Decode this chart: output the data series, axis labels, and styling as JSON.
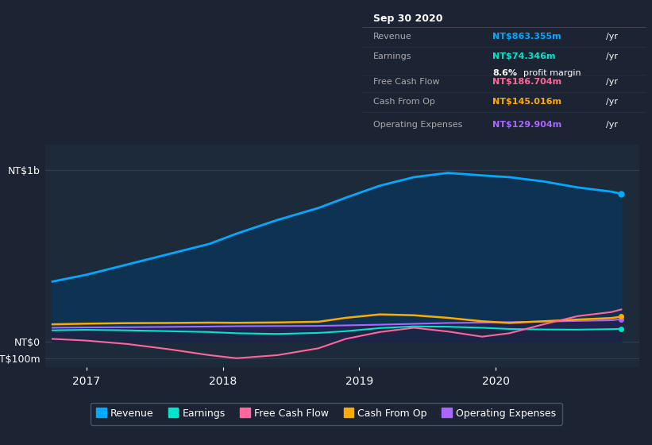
{
  "bg_color": "#1c2333",
  "plot_bg_color": "#1c2a3a",
  "ylim": [
    -150,
    1150
  ],
  "xlim": [
    2016.7,
    2021.05
  ],
  "y_ticks": [
    1000,
    0,
    -100
  ],
  "y_labels": [
    "NT$1b",
    "NT$0",
    "-NT$100m"
  ],
  "x_ticks": [
    2017,
    2018,
    2019,
    2020
  ],
  "legend_items": [
    {
      "label": "Revenue",
      "color": "#00aaff"
    },
    {
      "label": "Earnings",
      "color": "#00e5cc"
    },
    {
      "label": "Free Cash Flow",
      "color": "#ff6699"
    },
    {
      "label": "Cash From Op",
      "color": "#ffaa00"
    },
    {
      "label": "Operating Expenses",
      "color": "#aa66ff"
    }
  ],
  "revenue_x": [
    2016.75,
    2017.0,
    2017.3,
    2017.6,
    2017.9,
    2018.1,
    2018.4,
    2018.7,
    2018.9,
    2019.15,
    2019.4,
    2019.65,
    2019.9,
    2020.1,
    2020.35,
    2020.6,
    2020.85,
    2020.92
  ],
  "revenue_y": [
    350,
    390,
    450,
    510,
    570,
    630,
    710,
    780,
    840,
    910,
    960,
    985,
    970,
    960,
    935,
    900,
    875,
    863
  ],
  "earnings_x": [
    2016.75,
    2017.0,
    2017.3,
    2017.6,
    2017.9,
    2018.1,
    2018.4,
    2018.7,
    2018.9,
    2019.15,
    2019.4,
    2019.65,
    2019.9,
    2020.1,
    2020.35,
    2020.6,
    2020.85,
    2020.92
  ],
  "earnings_y": [
    65,
    68,
    65,
    60,
    55,
    48,
    44,
    50,
    60,
    78,
    88,
    86,
    80,
    73,
    70,
    69,
    72,
    74
  ],
  "fcf_x": [
    2016.75,
    2017.0,
    2017.3,
    2017.6,
    2017.9,
    2018.1,
    2018.4,
    2018.7,
    2018.9,
    2019.15,
    2019.4,
    2019.65,
    2019.9,
    2020.1,
    2020.35,
    2020.6,
    2020.85,
    2020.92
  ],
  "fcf_y": [
    15,
    5,
    -15,
    -45,
    -80,
    -98,
    -80,
    -40,
    15,
    55,
    80,
    58,
    28,
    48,
    100,
    148,
    172,
    187
  ],
  "cop_x": [
    2016.75,
    2017.0,
    2017.3,
    2017.6,
    2017.9,
    2018.1,
    2018.4,
    2018.7,
    2018.9,
    2019.15,
    2019.4,
    2019.65,
    2019.9,
    2020.1,
    2020.35,
    2020.6,
    2020.85,
    2020.92
  ],
  "cop_y": [
    100,
    104,
    107,
    108,
    110,
    109,
    111,
    115,
    138,
    158,
    153,
    138,
    118,
    108,
    118,
    128,
    137,
    145
  ],
  "ope_x": [
    2016.75,
    2017.0,
    2017.3,
    2017.6,
    2017.9,
    2018.1,
    2018.4,
    2018.7,
    2018.9,
    2019.15,
    2019.4,
    2019.65,
    2019.9,
    2020.1,
    2020.35,
    2020.6,
    2020.85,
    2020.92
  ],
  "ope_y": [
    80,
    82,
    83,
    85,
    87,
    89,
    90,
    91,
    94,
    98,
    103,
    108,
    110,
    113,
    116,
    120,
    124,
    130
  ],
  "tooltip_rows": [
    {
      "label": "Revenue",
      "value": "NT$863.355m",
      "suffix": "/yr",
      "color": "#00aaff",
      "margin": null
    },
    {
      "label": "Earnings",
      "value": "NT$74.346m",
      "suffix": "/yr",
      "color": "#00e5cc",
      "margin": "8.6% profit margin"
    },
    {
      "label": "Free Cash Flow",
      "value": "NT$186.704m",
      "suffix": "/yr",
      "color": "#ff6699",
      "margin": null
    },
    {
      "label": "Cash From Op",
      "value": "NT$145.016m",
      "suffix": "/yr",
      "color": "#ffaa00",
      "margin": null
    },
    {
      "label": "Operating Expenses",
      "value": "NT$129.904m",
      "suffix": "/yr",
      "color": "#aa66ff",
      "margin": null
    }
  ]
}
